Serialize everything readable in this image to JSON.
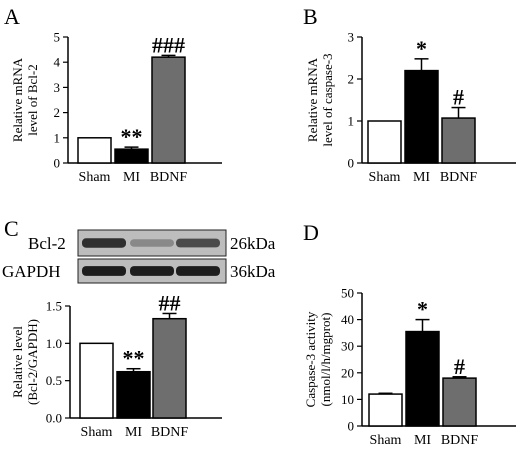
{
  "panels": {
    "A": {
      "letter": "A"
    },
    "B": {
      "letter": "B"
    },
    "C": {
      "letter": "C"
    },
    "D": {
      "letter": "D"
    }
  },
  "blot": {
    "rows": [
      {
        "protein": "Bcl-2",
        "size": "26kDa"
      },
      {
        "protein": "GAPDH",
        "size": "36kDa"
      }
    ],
    "band_intensity": [
      [
        0.85,
        0.35,
        0.7
      ],
      [
        0.95,
        0.95,
        0.95
      ]
    ]
  },
  "chart_data": [
    {
      "panel": "A",
      "type": "bar",
      "categories": [
        "Sham",
        "MI",
        "BDNF"
      ],
      "values": [
        1.0,
        0.55,
        4.2
      ],
      "errors": [
        0.0,
        0.08,
        0.07
      ],
      "bar_fills": [
        "#ffffff",
        "#000000",
        "#6e6e6e"
      ],
      "annotations": [
        "",
        "**",
        "###"
      ],
      "ylabel_lines": [
        "Relative mRNA",
        "level of Bcl-2"
      ],
      "ylim": [
        0,
        5
      ],
      "yticks": [
        0,
        1,
        2,
        3,
        4,
        5
      ],
      "ytick_labels": [
        "0",
        "1",
        "2",
        "3",
        "4",
        "5"
      ],
      "grid": false
    },
    {
      "panel": "B",
      "type": "bar",
      "categories": [
        "Sham",
        "MI",
        "BDNF"
      ],
      "values": [
        1.0,
        2.2,
        1.07
      ],
      "errors": [
        0.0,
        0.28,
        0.25
      ],
      "bar_fills": [
        "#ffffff",
        "#000000",
        "#6e6e6e"
      ],
      "annotations": [
        "",
        "*",
        "#"
      ],
      "ylabel_lines": [
        "Relative mRNA",
        "level of caspase-3"
      ],
      "ylim": [
        0,
        3
      ],
      "yticks": [
        0,
        1,
        2,
        3
      ],
      "ytick_labels": [
        "0",
        "1",
        "2",
        "3"
      ],
      "grid": false
    },
    {
      "panel": "C",
      "type": "bar",
      "categories": [
        "Sham",
        "MI",
        "BDNF"
      ],
      "values": [
        1.0,
        0.62,
        1.33
      ],
      "errors": [
        0.0,
        0.04,
        0.07
      ],
      "bar_fills": [
        "#ffffff",
        "#000000",
        "#6e6e6e"
      ],
      "annotations": [
        "",
        "**",
        "##"
      ],
      "ylabel_lines": [
        "Relative level",
        "(Bcl-2/GAPDH)"
      ],
      "ylim": [
        0,
        1.5
      ],
      "yticks": [
        0,
        0.5,
        1.0,
        1.5
      ],
      "ytick_labels": [
        "0.0",
        "0.5",
        "1.0",
        "1.5"
      ],
      "grid": false
    },
    {
      "panel": "D",
      "type": "bar",
      "categories": [
        "Sham",
        "MI",
        "BDNF"
      ],
      "values": [
        12,
        35.5,
        18
      ],
      "errors": [
        0.3,
        4.5,
        0.5
      ],
      "bar_fills": [
        "#ffffff",
        "#000000",
        "#6e6e6e"
      ],
      "annotations": [
        "",
        "*",
        "#"
      ],
      "ylabel_lines": [
        "Caspase-3 activity",
        "(nmol/l/h/mgprot)"
      ],
      "ylim": [
        0,
        50
      ],
      "yticks": [
        0,
        10,
        20,
        30,
        40,
        50
      ],
      "ytick_labels": [
        "0",
        "10",
        "20",
        "30",
        "40",
        "50"
      ],
      "grid": false
    }
  ]
}
